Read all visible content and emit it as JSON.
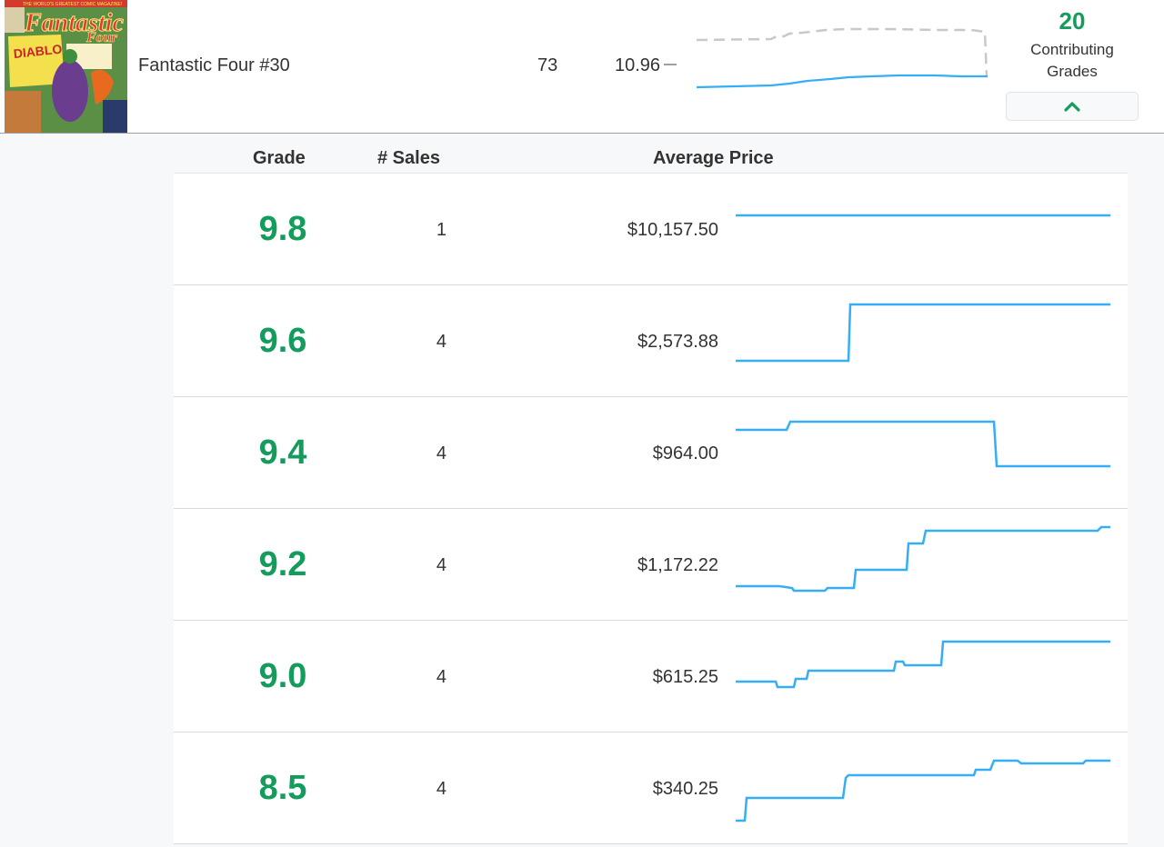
{
  "summary": {
    "title": "Fantastic Four #30",
    "count": "73",
    "price_index": "10.96",
    "contributing_count": "20",
    "contributing_label": "Contributing Grades",
    "cover_texts": {
      "top_banner": "THE WORLD'S GREATEST COMIC MAGAZINE!",
      "title": "Fantastic",
      "four": "Four",
      "villain": "DIABLO"
    }
  },
  "columns": {
    "grade": "Grade",
    "sales": "# Sales",
    "average_price": "Average Price"
  },
  "colors": {
    "grade_green": "#149c5c",
    "spark_blue": "#35aef5",
    "spark_gray": "#c8c8c8"
  },
  "icons": {
    "collapse": "chevron-up-icon"
  },
  "rows": [
    {
      "grade": "9.8",
      "sales": "1",
      "avg_price": "$10,157.50"
    },
    {
      "grade": "9.6",
      "sales": "4",
      "avg_price": "$2,573.88"
    },
    {
      "grade": "9.4",
      "sales": "4",
      "avg_price": "$964.00"
    },
    {
      "grade": "9.2",
      "sales": "4",
      "avg_price": "$1,172.22"
    },
    {
      "grade": "9.0",
      "sales": "4",
      "avg_price": "$615.25"
    },
    {
      "grade": "8.5",
      "sales": "4",
      "avg_price": "$340.25"
    }
  ]
}
